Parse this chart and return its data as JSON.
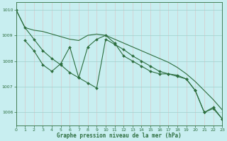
{
  "title": "Graphe pression niveau de la mer (hPa)",
  "background_color": "#c8eef0",
  "grid_color": "#9ecfcc",
  "line_color": "#2d6e3e",
  "xlim": [
    0,
    23
  ],
  "ylim": [
    1005.5,
    1010.3
  ],
  "yticks": [
    1006,
    1007,
    1008,
    1009,
    1010
  ],
  "xticks": [
    0,
    1,
    2,
    3,
    4,
    5,
    6,
    7,
    8,
    9,
    10,
    11,
    12,
    13,
    14,
    15,
    16,
    17,
    18,
    19,
    20,
    21,
    22,
    23
  ],
  "line1_x": [
    0,
    1,
    2,
    3,
    4,
    5,
    6,
    7,
    8,
    9,
    10,
    11,
    12,
    13,
    14,
    15,
    16,
    17,
    18,
    19,
    20,
    21,
    22,
    23
  ],
  "line1_y": [
    1010.0,
    1009.3,
    1009.2,
    1009.15,
    1009.05,
    1008.95,
    1008.85,
    1008.8,
    1009.0,
    1009.05,
    1009.0,
    1008.85,
    1008.7,
    1008.55,
    1008.4,
    1008.25,
    1008.1,
    1007.95,
    1007.75,
    1007.5,
    1007.2,
    1006.85,
    1006.5,
    1006.1
  ],
  "line2_x": [
    1,
    2,
    3,
    4,
    5,
    6,
    7,
    8,
    9,
    10,
    11,
    12,
    13,
    14,
    15,
    16,
    17,
    18,
    19,
    20,
    21,
    22,
    23
  ],
  "line2_y": [
    1008.8,
    1008.4,
    1007.85,
    1007.6,
    1007.9,
    1008.55,
    1007.35,
    1008.55,
    1008.85,
    1009.0,
    1008.7,
    1008.2,
    1008.0,
    1007.8,
    1007.6,
    1007.5,
    1007.5,
    1007.4,
    1007.3,
    1006.85,
    1006.0,
    1006.2,
    1005.75
  ],
  "line3_x": [
    0,
    1,
    2,
    3,
    4,
    5,
    6,
    7,
    8,
    9,
    10,
    11,
    12,
    13,
    14,
    15,
    16,
    17,
    18,
    19,
    20,
    21,
    22,
    23
  ],
  "line3_y": [
    1010.0,
    1009.3,
    1008.85,
    1008.4,
    1008.1,
    1007.85,
    1007.55,
    1007.35,
    1007.15,
    1006.95,
    1008.85,
    1008.65,
    1008.45,
    1008.2,
    1008.0,
    1007.8,
    1007.6,
    1007.5,
    1007.45,
    1007.3,
    1006.85,
    1006.0,
    1006.15,
    1005.75
  ],
  "marker": "D",
  "marker_size": 2.0,
  "line_width": 0.8
}
